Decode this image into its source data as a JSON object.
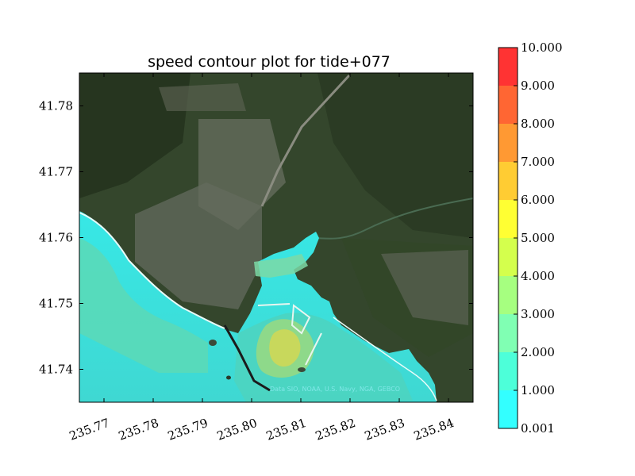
{
  "chart_data": {
    "type": "contour",
    "title": "speed contour plot for tide+077",
    "xlim": [
      235.765,
      235.845
    ],
    "ylim": [
      41.735,
      41.785
    ],
    "x_ticks": [
      "235.77",
      "235.78",
      "235.79",
      "235.80",
      "235.81",
      "235.82",
      "235.83",
      "235.84"
    ],
    "x_tick_values": [
      235.77,
      235.78,
      235.79,
      235.8,
      235.81,
      235.82,
      235.83,
      235.84
    ],
    "y_ticks": [
      "41.74",
      "41.75",
      "41.76",
      "41.77",
      "41.78"
    ],
    "y_tick_values": [
      41.74,
      41.75,
      41.76,
      41.77,
      41.78
    ],
    "colorbar": {
      "levels": [
        0.001,
        1.0,
        2.0,
        3.0,
        4.0,
        5.0,
        6.0,
        7.0,
        8.0,
        9.0,
        10.0
      ],
      "labels": [
        "0.001",
        "1.000",
        "2.000",
        "3.000",
        "4.000",
        "5.000",
        "6.000",
        "7.000",
        "8.000",
        "9.000",
        "10.000"
      ],
      "colors": [
        "#33ffff",
        "#4dffd9",
        "#80ffb3",
        "#a6ff80",
        "#d4ff4d",
        "#ffff33",
        "#ffcc33",
        "#ff9933",
        "#ff6633",
        "#ff3333"
      ]
    },
    "attribution": "Data SIO, NOAA, U.S. Navy, NGA, GEBCO",
    "grid": false
  },
  "map_colors": {
    "land_dark": "#2d3d26",
    "land_mid": "#3f5233",
    "urban": "#6f7566",
    "water_low": "#33e6e6",
    "water_mid": "#5ad6b8"
  }
}
